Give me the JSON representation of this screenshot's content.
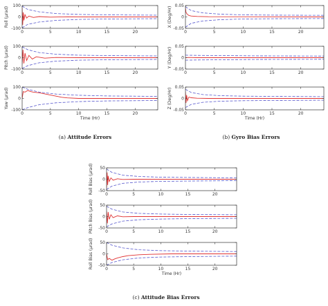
{
  "chart_data": [
    {
      "type": "line",
      "caption_label": "(a)",
      "caption": "Attitude Errors",
      "xlabel": "Time (Hr)",
      "xlim": [
        0,
        24
      ],
      "xticks": [
        0,
        5,
        10,
        15,
        20
      ],
      "panels": [
        {
          "ylabel": "Roll (μrad)",
          "ylim": [
            -100,
            100
          ],
          "yticks": [
            -100,
            0,
            100
          ],
          "series": [
            {
              "role": "error",
              "color": "#e03030",
              "x": [
                0,
                0.1,
                0.2,
                0.3,
                0.5,
                0.8,
                1.2,
                2,
                3,
                5,
                8,
                12,
                16,
                20,
                24
              ],
              "y": [
                80,
                -70,
                40,
                -30,
                20,
                -10,
                8,
                -5,
                3,
                -2,
                1,
                0,
                0,
                0,
                0
              ]
            },
            {
              "role": "bound-upper",
              "color": "#5555cc",
              "x": [
                0,
                1,
                3,
                6,
                10,
                15,
                24
              ],
              "y": [
                95,
                65,
                45,
                30,
                22,
                18,
                15
              ]
            },
            {
              "role": "bound-lower",
              "color": "#5555cc",
              "x": [
                0,
                1,
                3,
                6,
                10,
                15,
                24
              ],
              "y": [
                -95,
                -65,
                -45,
                -30,
                -22,
                -18,
                -15
              ]
            }
          ]
        },
        {
          "ylabel": "Pitch (μrad)",
          "ylim": [
            -100,
            100
          ],
          "yticks": [
            -100,
            0,
            100
          ],
          "series": [
            {
              "role": "error",
              "color": "#e03030",
              "x": [
                0,
                0.15,
                0.3,
                0.5,
                0.8,
                1.2,
                1.8,
                2.5,
                4,
                6,
                10,
                24
              ],
              "y": [
                -60,
                70,
                -50,
                40,
                -25,
                20,
                -12,
                8,
                -4,
                2,
                0,
                0
              ]
            },
            {
              "role": "bound-upper",
              "color": "#5555cc",
              "x": [
                0,
                1,
                3,
                6,
                10,
                15,
                24
              ],
              "y": [
                95,
                70,
                45,
                30,
                22,
                18,
                15
              ]
            },
            {
              "role": "bound-lower",
              "color": "#5555cc",
              "x": [
                0,
                1,
                3,
                6,
                10,
                15,
                24
              ],
              "y": [
                -95,
                -70,
                -45,
                -30,
                -22,
                -18,
                -15
              ]
            }
          ]
        },
        {
          "ylabel": "Yaw (μrad)",
          "ylim": [
            -100,
            100
          ],
          "yticks": [
            -100,
            0,
            100
          ],
          "series": [
            {
              "role": "error",
              "color": "#e03030",
              "x": [
                0,
                0.2,
                0.5,
                1,
                1.5,
                2,
                3,
                4,
                5,
                6,
                7,
                8,
                10,
                14,
                24
              ],
              "y": [
                0,
                60,
                55,
                70,
                60,
                55,
                50,
                40,
                30,
                20,
                10,
                5,
                0,
                0,
                0
              ]
            },
            {
              "role": "bound-upper",
              "color": "#5555cc",
              "x": [
                0,
                1,
                3,
                6,
                10,
                15,
                24
              ],
              "y": [
                100,
                80,
                55,
                38,
                28,
                22,
                18
              ]
            },
            {
              "role": "bound-lower",
              "color": "#5555cc",
              "x": [
                0,
                1,
                3,
                6,
                10,
                15,
                24
              ],
              "y": [
                -100,
                -80,
                -55,
                -38,
                -28,
                -22,
                -18
              ]
            }
          ]
        }
      ]
    },
    {
      "type": "line",
      "caption_label": "(b)",
      "caption": "Gyro Bias Errors",
      "xlabel": "Time (Hr)",
      "xlim": [
        0,
        24
      ],
      "xticks": [
        0,
        5,
        10,
        15,
        20
      ],
      "panels": [
        {
          "ylabel": "X (Deg/Hr)",
          "ylim": [
            -0.05,
            0.05
          ],
          "yticks": [
            -0.05,
            0,
            0.05
          ],
          "series": [
            {
              "role": "error",
              "color": "#e03030",
              "x": [
                0,
                0.1,
                0.3,
                0.6,
                1,
                2,
                4,
                24
              ],
              "y": [
                0.04,
                0.02,
                0.012,
                0.006,
                0.004,
                0.002,
                0.001,
                0
              ]
            },
            {
              "role": "bound-upper",
              "color": "#5555cc",
              "x": [
                0,
                1,
                3,
                6,
                10,
                15,
                24
              ],
              "y": [
                0.045,
                0.028,
                0.018,
                0.012,
                0.009,
                0.008,
                0.007
              ]
            },
            {
              "role": "bound-lower",
              "color": "#5555cc",
              "x": [
                0,
                1,
                3,
                6,
                10,
                15,
                24
              ],
              "y": [
                -0.045,
                -0.028,
                -0.018,
                -0.012,
                -0.009,
                -0.008,
                -0.007
              ]
            }
          ]
        },
        {
          "ylabel": "Y (Deg/Hr)",
          "ylim": [
            -0.05,
            0.05
          ],
          "yticks": [
            -0.05,
            0,
            0.05
          ],
          "series": [
            {
              "role": "error",
              "color": "#e03030",
              "x": [
                0,
                0.5,
                2,
                6,
                24
              ],
              "y": [
                0,
                0.001,
                0,
                0,
                0
              ]
            },
            {
              "role": "bound-upper",
              "color": "#5555cc",
              "x": [
                0,
                2,
                6,
                12,
                24
              ],
              "y": [
                0.011,
                0.01,
                0.009,
                0.008,
                0.007
              ]
            },
            {
              "role": "bound-lower",
              "color": "#5555cc",
              "x": [
                0,
                2,
                6,
                12,
                24
              ],
              "y": [
                -0.011,
                -0.01,
                -0.009,
                -0.008,
                -0.007
              ]
            }
          ]
        },
        {
          "ylabel": "Z (Deg/Hr)",
          "ylim": [
            -0.05,
            0.05
          ],
          "yticks": [
            -0.05,
            0,
            0.05
          ],
          "series": [
            {
              "role": "error",
              "color": "#e03030",
              "x": [
                0,
                0.1,
                0.2,
                0.35,
                0.6,
                1,
                2,
                4,
                24
              ],
              "y": [
                0.03,
                -0.02,
                0.015,
                -0.01,
                0.006,
                0.003,
                0.001,
                0,
                0
              ]
            },
            {
              "role": "bound-upper",
              "color": "#5555cc",
              "x": [
                0,
                1,
                3,
                6,
                10,
                15,
                24
              ],
              "y": [
                0.04,
                0.026,
                0.017,
                0.012,
                0.01,
                0.009,
                0.008
              ]
            },
            {
              "role": "bound-lower",
              "color": "#5555cc",
              "x": [
                0,
                1,
                3,
                6,
                10,
                15,
                24
              ],
              "y": [
                -0.04,
                -0.026,
                -0.017,
                -0.012,
                -0.01,
                -0.009,
                -0.008
              ]
            }
          ]
        }
      ]
    },
    {
      "type": "line",
      "caption_label": "(c)",
      "caption": "Attitude Bias Errors",
      "xlabel": "Time (Hr)",
      "xlim": [
        0,
        24
      ],
      "xticks": [
        0,
        5,
        10,
        15,
        20
      ],
      "panels": [
        {
          "ylabel": "Roll Bias (μrad)",
          "ylim": [
            -50,
            50
          ],
          "yticks": [
            -50,
            0,
            50
          ],
          "series": [
            {
              "role": "error",
              "color": "#e03030",
              "x": [
                0,
                0.1,
                0.2,
                0.3,
                0.5,
                0.8,
                1.2,
                2,
                3,
                5,
                8,
                24
              ],
              "y": [
                -40,
                30,
                -25,
                15,
                -10,
                6,
                -4,
                2,
                -1,
                0,
                0,
                0
              ]
            },
            {
              "role": "bound-upper",
              "color": "#5555cc",
              "x": [
                0,
                1,
                3,
                6,
                10,
                15,
                24
              ],
              "y": [
                45,
                30,
                18,
                12,
                9,
                8,
                6
              ]
            },
            {
              "role": "bound-lower",
              "color": "#5555cc",
              "x": [
                0,
                1,
                3,
                6,
                10,
                15,
                24
              ],
              "y": [
                -45,
                -30,
                -18,
                -12,
                -9,
                -8,
                -6
              ]
            }
          ]
        },
        {
          "ylabel": "Pitch Bias (μrad)",
          "ylim": [
            -50,
            50
          ],
          "yticks": [
            -50,
            0,
            50
          ],
          "series": [
            {
              "role": "error",
              "color": "#e03030",
              "x": [
                0,
                0.15,
                0.3,
                0.5,
                0.8,
                1.2,
                2,
                3,
                5,
                8,
                24
              ],
              "y": [
                25,
                -30,
                20,
                -12,
                8,
                -5,
                3,
                -1,
                0,
                0,
                0
              ]
            },
            {
              "role": "bound-upper",
              "color": "#5555cc",
              "x": [
                0,
                1,
                3,
                6,
                10,
                15,
                24
              ],
              "y": [
                45,
                32,
                20,
                14,
                11,
                9,
                8
              ]
            },
            {
              "role": "bound-lower",
              "color": "#5555cc",
              "x": [
                0,
                1,
                3,
                6,
                10,
                15,
                24
              ],
              "y": [
                -45,
                -32,
                -20,
                -14,
                -11,
                -9,
                -8
              ]
            }
          ]
        },
        {
          "ylabel": "Roll Bias (μrad)",
          "ylim": [
            -50,
            50
          ],
          "yticks": [
            -50,
            0,
            50
          ],
          "series": [
            {
              "role": "error",
              "color": "#e03030",
              "x": [
                0,
                0.2,
                0.5,
                1,
                1.5,
                2,
                3,
                4,
                6,
                8,
                12,
                24
              ],
              "y": [
                0,
                -25,
                -20,
                -28,
                -22,
                -18,
                -12,
                -8,
                -4,
                -2,
                0,
                0
              ]
            },
            {
              "role": "bound-upper",
              "color": "#5555cc",
              "x": [
                0,
                1,
                3,
                6,
                10,
                15,
                24
              ],
              "y": [
                50,
                38,
                26,
                18,
                14,
                12,
                10
              ]
            },
            {
              "role": "bound-lower",
              "color": "#5555cc",
              "x": [
                0,
                1,
                3,
                6,
                10,
                15,
                24
              ],
              "y": [
                -50,
                -38,
                -26,
                -18,
                -14,
                -12,
                -10
              ]
            }
          ]
        }
      ]
    }
  ]
}
